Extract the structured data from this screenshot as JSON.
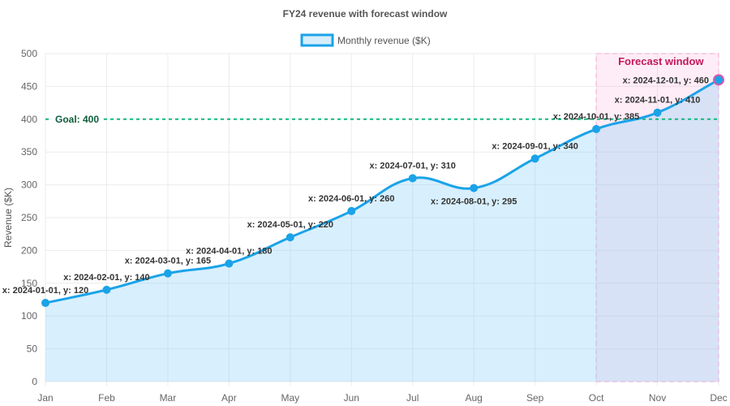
{
  "chart_data": {
    "type": "line",
    "title": "FY24 revenue with forecast window",
    "xlabel": "",
    "ylabel": "Revenue ($K)",
    "ylim": [
      0,
      500
    ],
    "yticks": [
      0,
      50,
      100,
      150,
      200,
      250,
      300,
      350,
      400,
      450,
      500
    ],
    "categories": [
      "Jan",
      "Feb",
      "Mar",
      "Apr",
      "May",
      "Jun",
      "Jul",
      "Aug",
      "Sep",
      "Oct",
      "Nov",
      "Dec"
    ],
    "x": [
      "2024-01-01",
      "2024-02-01",
      "2024-03-01",
      "2024-04-01",
      "2024-05-01",
      "2024-06-01",
      "2024-07-01",
      "2024-08-01",
      "2024-09-01",
      "2024-10-01",
      "2024-11-01",
      "2024-12-01"
    ],
    "series": [
      {
        "name": "Monthly revenue ($K)",
        "values": [
          120,
          140,
          165,
          180,
          220,
          260,
          310,
          295,
          340,
          385,
          410,
          460
        ],
        "color": "#1aa3e8",
        "fill": "#d6eefb"
      }
    ],
    "point_labels": [
      "x: 2024-01-01, y: 120",
      "x: 2024-02-01, y: 140",
      "x: 2024-03-01, y: 165",
      "x: 2024-04-01, y: 180",
      "x: 2024-05-01, y: 220",
      "x: 2024-06-01, y: 260",
      "x: 2024-07-01, y: 310",
      "x: 2024-08-01, y: 295",
      "x: 2024-09-01, y: 340",
      "x: 2024-10-01, y: 385",
      "x: 2024-11-01, y: 410",
      "x: 2024-12-01, y: 460"
    ],
    "highlight_point": {
      "x": "2024-12-01",
      "color": "#e056a8"
    },
    "annotations": {
      "goal_line": {
        "value": 400,
        "label": "Goal: 400",
        "color": "#10b981",
        "label_color": "#0b5e3c"
      },
      "forecast_box": {
        "from": "Oct",
        "to": "Dec",
        "label": "Forecast window",
        "color": "#f9a8d4",
        "label_color": "#c2185b"
      }
    },
    "legend": {
      "position": "top",
      "entries": [
        "Monthly revenue ($K)"
      ]
    },
    "grid": true
  }
}
